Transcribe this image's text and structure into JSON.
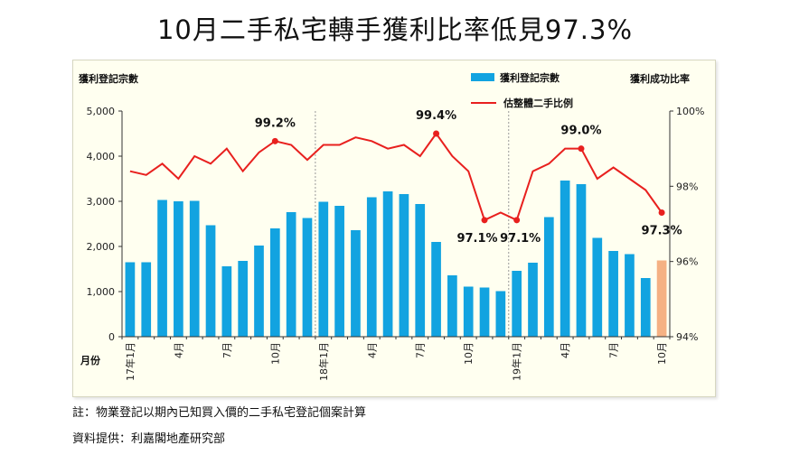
{
  "headline": "10月二手私宅轉手獲利比率低見97.3%",
  "footnote": "註：物業登記以期內已知買入價的二手私宅登記個案計算",
  "source": "資料提供：利嘉閣地產研究部",
  "chart_data": {
    "type": "bar",
    "y_left_title": "獲利登記宗數",
    "y_right_title": "獲利成功比率",
    "x_axis_title": "月份",
    "y_left_ticks": [
      "5,000",
      "4,000",
      "3,000",
      "2,000",
      "1,000",
      "0"
    ],
    "y_right_ticks": [
      "100%",
      "98%",
      "96%",
      "94%"
    ],
    "ylim_left": [
      0,
      5000
    ],
    "ylim_right": [
      94,
      100
    ],
    "x_tick_labels": [
      {
        "index": 0,
        "label": "17年1月"
      },
      {
        "index": 3,
        "label": "4月"
      },
      {
        "index": 6,
        "label": "7月"
      },
      {
        "index": 9,
        "label": "10月"
      },
      {
        "index": 12,
        "label": "18年1月"
      },
      {
        "index": 15,
        "label": "4月"
      },
      {
        "index": 18,
        "label": "7月"
      },
      {
        "index": 21,
        "label": "10月"
      },
      {
        "index": 24,
        "label": "19年1月"
      },
      {
        "index": 27,
        "label": "4月"
      },
      {
        "index": 30,
        "label": "7月"
      },
      {
        "index": 33,
        "label": "10月"
      }
    ],
    "series": [
      {
        "name": "獲利登記宗數",
        "type": "bar",
        "axis": "left",
        "color": "#12a3e0",
        "highlight_color": "#f5b183",
        "highlight_index": 33,
        "values": [
          1650,
          1650,
          3030,
          3000,
          3010,
          2470,
          1560,
          1680,
          2020,
          2400,
          2760,
          2630,
          2990,
          2900,
          2360,
          3090,
          3220,
          3160,
          2940,
          2100,
          1360,
          1110,
          1090,
          1010,
          1460,
          1640,
          2650,
          3460,
          3380,
          2190,
          1900,
          1830,
          1300,
          1690
        ]
      },
      {
        "name": "估整體二手比例",
        "type": "line",
        "axis": "right",
        "color": "#e8201e",
        "values": [
          98.4,
          98.3,
          98.6,
          98.2,
          98.8,
          98.6,
          99.0,
          98.4,
          98.9,
          99.2,
          99.1,
          98.7,
          99.1,
          99.1,
          99.3,
          99.2,
          99.0,
          99.1,
          98.8,
          99.4,
          98.8,
          98.4,
          97.1,
          97.3,
          97.1,
          98.4,
          98.6,
          99.0,
          99.0,
          98.2,
          98.5,
          98.2,
          97.9,
          97.3
        ]
      }
    ],
    "annotations": [
      {
        "index": 9,
        "label": "99.2%"
      },
      {
        "index": 19,
        "label": "99.4%"
      },
      {
        "index": 22,
        "label": "97.1%"
      },
      {
        "index": 24,
        "label": "97.1%"
      },
      {
        "index": 28,
        "label": "99.0%"
      },
      {
        "index": 33,
        "label": "97.3%"
      }
    ]
  }
}
